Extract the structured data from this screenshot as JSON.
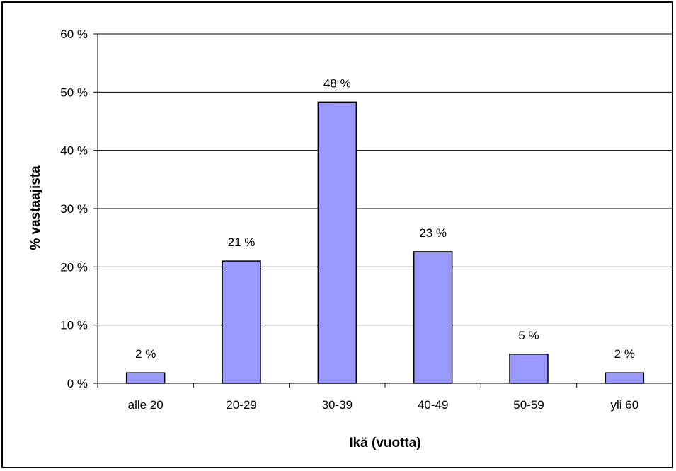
{
  "chart_data": {
    "type": "bar",
    "title": "",
    "xlabel": "Ikä (vuotta)",
    "ylabel": "% vastaajista",
    "categories": [
      "alle 20",
      "20-29",
      "30-39",
      "40-49",
      "50-59",
      "yli 60"
    ],
    "values": [
      1.8,
      21,
      48.3,
      22.6,
      5,
      1.8
    ],
    "data_labels": [
      "2 %",
      "21 %",
      "48 %",
      "23 %",
      "5 %",
      "2 %"
    ],
    "ylim": [
      0,
      60
    ],
    "yticks": [
      0,
      10,
      20,
      30,
      40,
      50,
      60
    ],
    "ytick_labels": [
      "0 %",
      "10 %",
      "20 %",
      "30 %",
      "40 %",
      "50 %",
      "60 %"
    ],
    "grid": true,
    "legend": "none",
    "colors": {
      "bar": "#9999ff",
      "bar_edge": "#000000",
      "grid": "#000000"
    }
  }
}
